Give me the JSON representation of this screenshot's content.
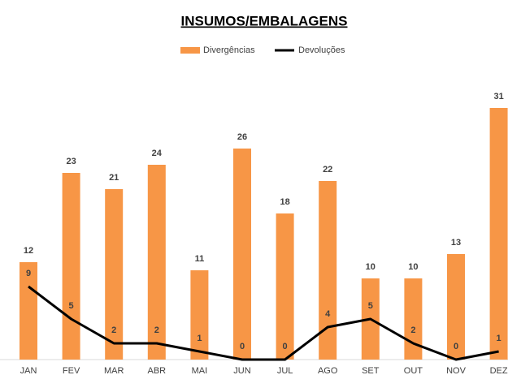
{
  "chart_data": {
    "type": "bar_line",
    "title": "INSUMOS/EMBALAGENS",
    "categories": [
      "JAN",
      "FEV",
      "MAR",
      "ABR",
      "MAI",
      "JUN",
      "JUL",
      "AGO",
      "SET",
      "OUT",
      "NOV",
      "DEZ"
    ],
    "series": [
      {
        "name": "Divergências",
        "type": "bar",
        "color": "#f79646",
        "label_color": "#b86125",
        "values": [
          12,
          23,
          21,
          24,
          11,
          26,
          18,
          22,
          10,
          10,
          13,
          31
        ]
      },
      {
        "name": "Devoluções",
        "type": "line",
        "color": "#000000",
        "label_color": "#000000",
        "values": [
          9,
          5,
          2,
          2,
          1,
          0,
          0,
          4,
          5,
          2,
          0,
          1
        ]
      }
    ]
  }
}
